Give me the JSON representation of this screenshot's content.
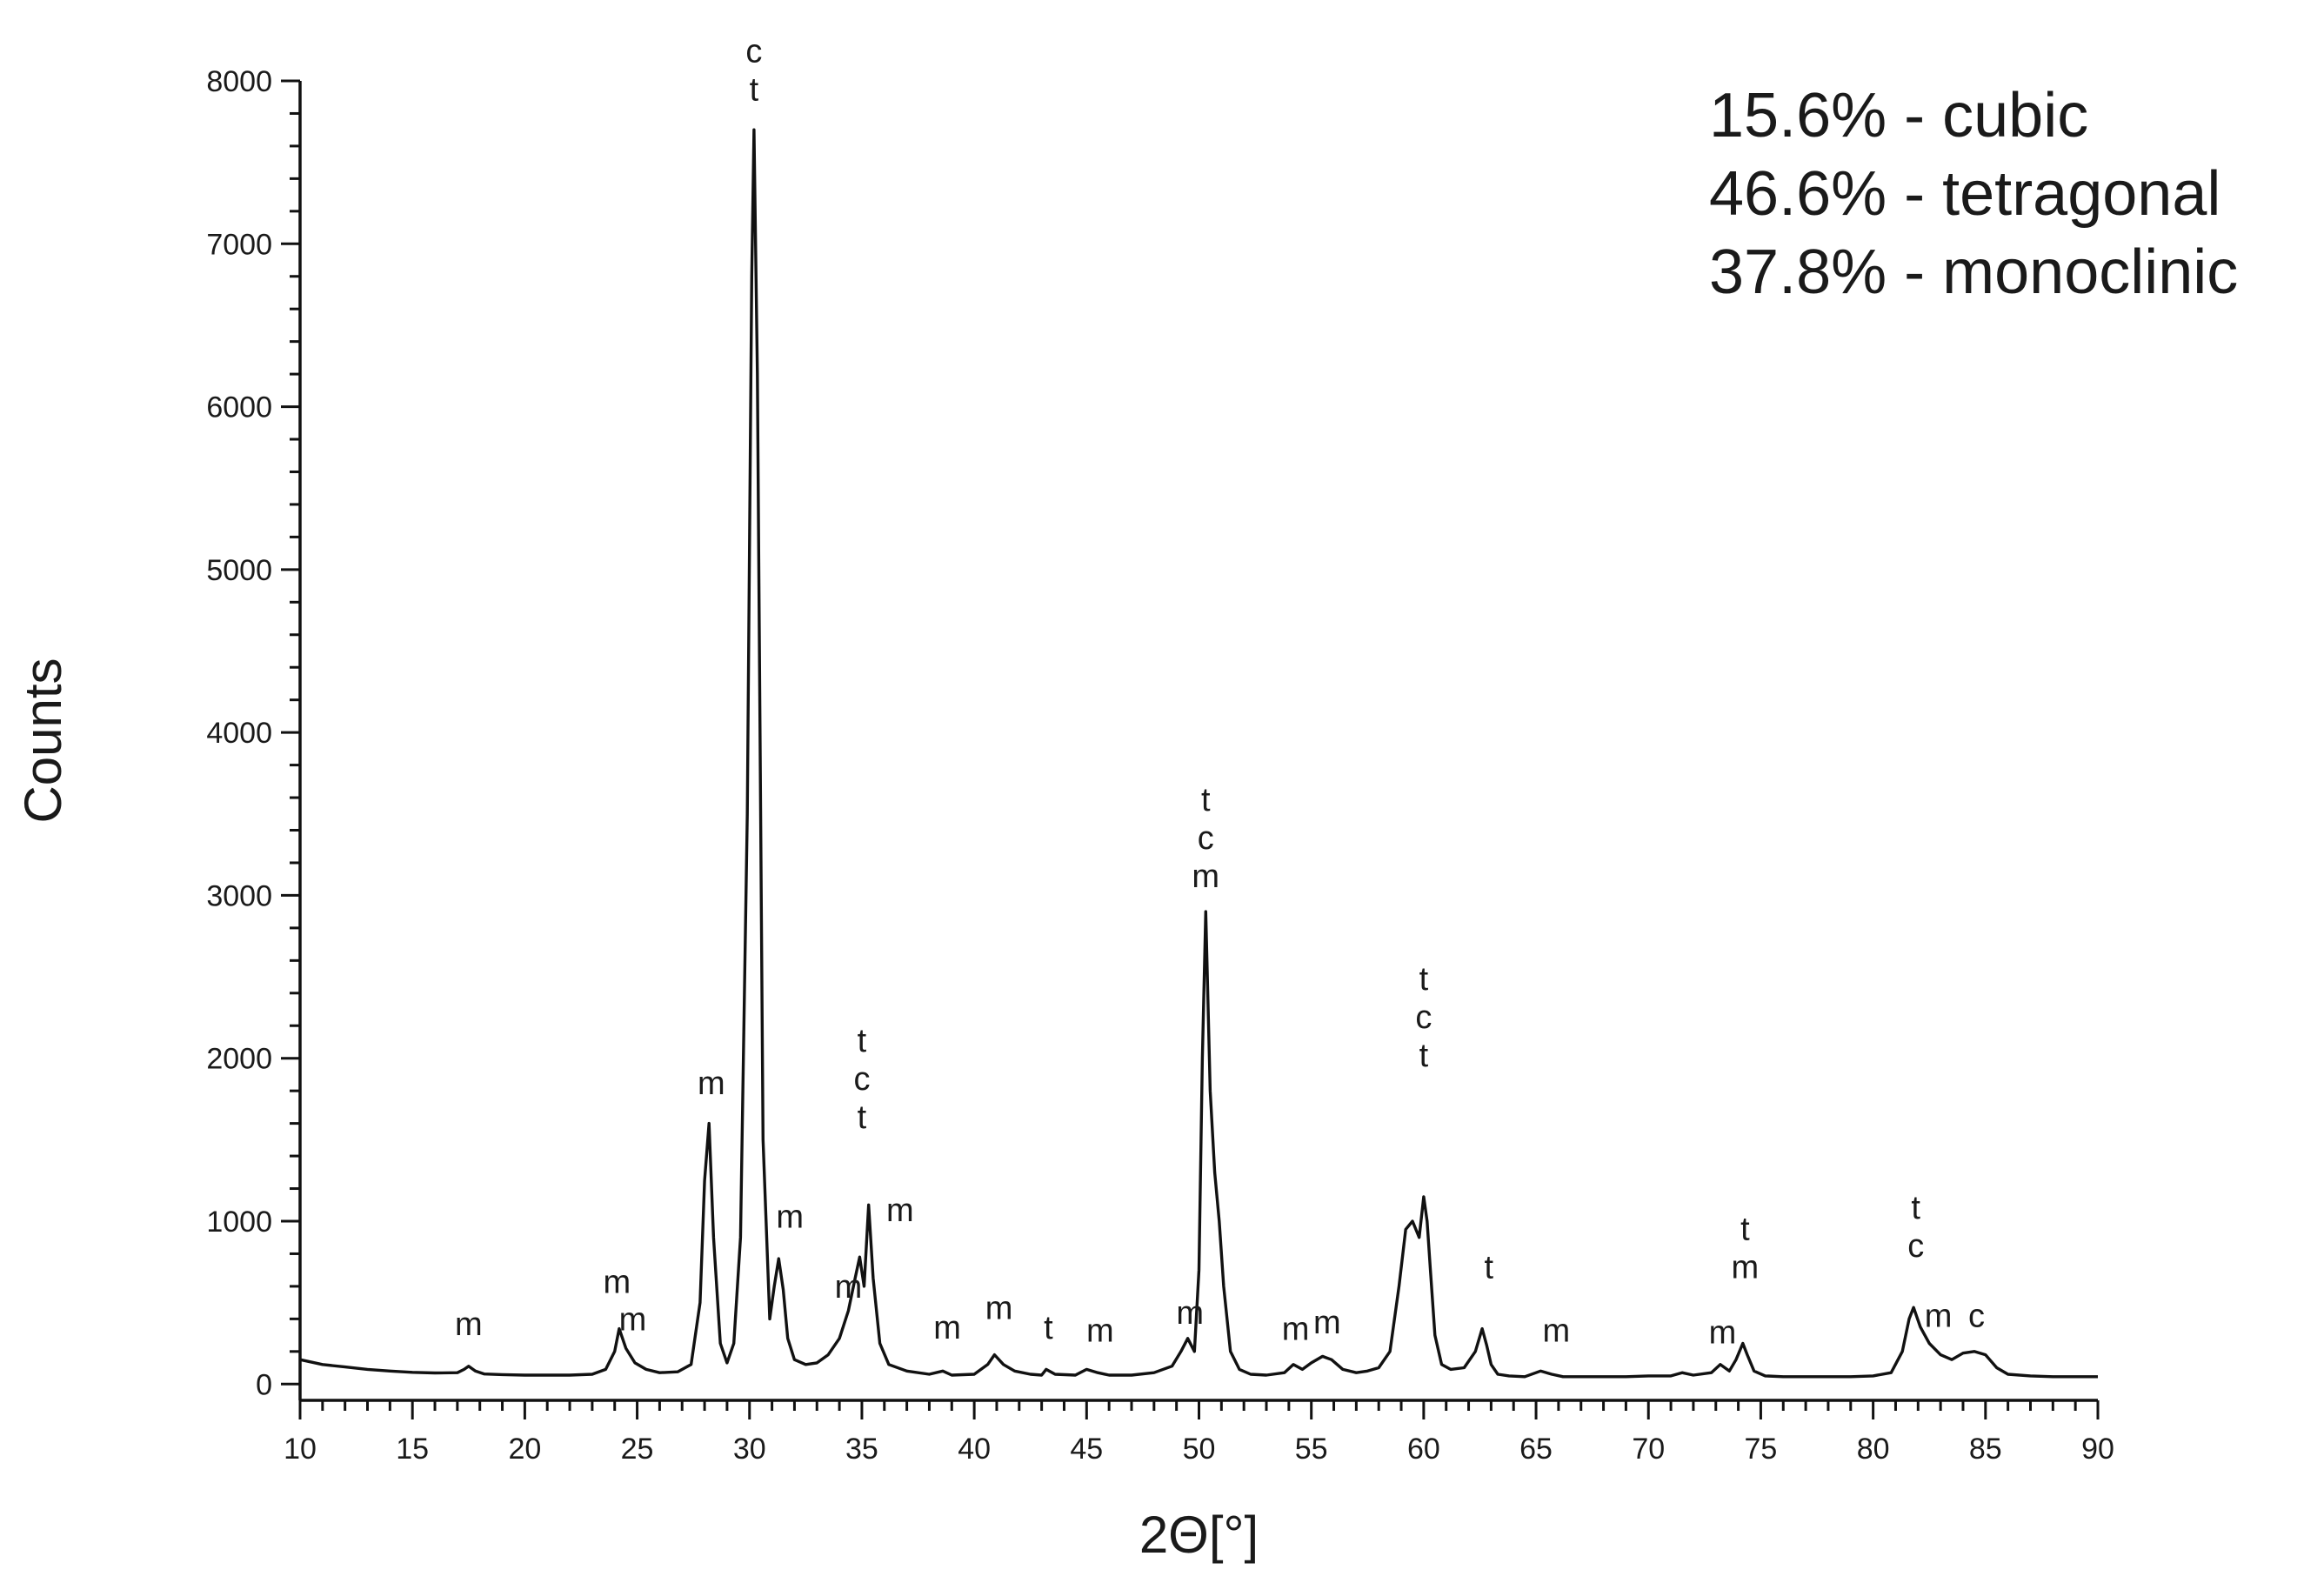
{
  "chart_data": {
    "type": "line",
    "title": "",
    "xlabel": "2Θ[°]",
    "ylabel": "Counts",
    "xlim": [
      10,
      90
    ],
    "ylim": [
      -100,
      8000
    ],
    "x_ticks": [
      10,
      15,
      20,
      25,
      30,
      35,
      40,
      45,
      50,
      55,
      60,
      65,
      70,
      75,
      80,
      85,
      90
    ],
    "y_ticks": [
      0,
      1000,
      2000,
      3000,
      4000,
      5000,
      6000,
      7000,
      8000
    ],
    "x_minor_step": 1,
    "y_minor_step": 200,
    "grid": false,
    "line_color": "#111111",
    "series": [
      {
        "x": [
          10,
          11,
          12,
          13,
          14,
          15,
          16,
          17,
          17.3,
          17.5,
          17.8,
          18.2,
          19,
          20,
          21,
          22,
          23,
          23.6,
          24.0,
          24.2,
          24.5,
          24.9,
          25.4,
          26.0,
          26.8,
          27.4,
          27.8,
          28.0,
          28.2,
          28.4,
          28.7,
          29.0,
          29.3,
          29.6,
          29.9,
          30.1,
          30.2,
          30.35,
          30.6,
          30.9,
          31.1,
          31.3,
          31.5,
          31.7,
          32.0,
          32.5,
          33.0,
          33.5,
          34.0,
          34.4,
          34.7,
          34.9,
          35.1,
          35.3,
          35.5,
          35.8,
          36.2,
          37.0,
          38.0,
          38.6,
          39.0,
          40.0,
          40.6,
          40.9,
          41.3,
          41.8,
          42.5,
          43.0,
          43.2,
          43.6,
          44.5,
          45.0,
          45.5,
          46.0,
          47.0,
          48.0,
          48.8,
          49.2,
          49.5,
          49.8,
          50.0,
          50.15,
          50.3,
          50.5,
          50.7,
          50.9,
          51.1,
          51.4,
          51.8,
          52.3,
          53.0,
          53.8,
          54.2,
          54.6,
          55.0,
          55.5,
          55.9,
          56.4,
          57.0,
          57.5,
          58.0,
          58.5,
          58.9,
          59.2,
          59.5,
          59.8,
          60.0,
          60.15,
          60.3,
          60.5,
          60.8,
          61.2,
          61.8,
          62.3,
          62.6,
          62.8,
          63.0,
          63.3,
          63.8,
          64.5,
          65.2,
          65.7,
          66.2,
          67.0,
          68.0,
          69.0,
          70.0,
          71.0,
          71.5,
          72.0,
          72.8,
          73.2,
          73.6,
          73.9,
          74.2,
          74.4,
          74.7,
          75.2,
          76.0,
          77.0,
          78.0,
          79.0,
          80.0,
          80.8,
          81.3,
          81.6,
          81.8,
          82.1,
          82.5,
          83.0,
          83.5,
          84.0,
          84.5,
          85.0,
          85.5,
          86.0,
          87.0,
          88.0,
          89.0,
          90.0
        ],
        "y": [
          150,
          120,
          105,
          90,
          80,
          72,
          68,
          70,
          90,
          110,
          80,
          62,
          58,
          55,
          55,
          55,
          60,
          90,
          200,
          340,
          220,
          130,
          90,
          70,
          75,
          120,
          500,
          1250,
          1600,
          900,
          250,
          130,
          250,
          900,
          3500,
          6800,
          7700,
          6200,
          1500,
          400,
          600,
          770,
          580,
          280,
          150,
          120,
          130,
          180,
          280,
          450,
          650,
          780,
          600,
          1100,
          650,
          250,
          120,
          80,
          60,
          80,
          55,
          60,
          120,
          180,
          120,
          80,
          60,
          55,
          90,
          60,
          55,
          90,
          70,
          55,
          55,
          70,
          110,
          200,
          280,
          200,
          700,
          2000,
          2900,
          1800,
          1300,
          1000,
          600,
          200,
          90,
          60,
          55,
          70,
          120,
          90,
          130,
          170,
          150,
          90,
          70,
          80,
          100,
          200,
          600,
          950,
          1000,
          900,
          1150,
          1000,
          700,
          300,
          120,
          90,
          100,
          200,
          340,
          240,
          120,
          60,
          50,
          45,
          80,
          60,
          45,
          45,
          45,
          45,
          50,
          50,
          70,
          55,
          70,
          120,
          80,
          150,
          250,
          180,
          80,
          50,
          45,
          45,
          45,
          45,
          50,
          70,
          200,
          400,
          470,
          350,
          250,
          180,
          150,
          190,
          200,
          180,
          100,
          60,
          50,
          45,
          45,
          45
        ]
      }
    ],
    "peak_labels": [
      {
        "x": 17.5,
        "y": 300,
        "lines": [
          "m"
        ]
      },
      {
        "x": 24.1,
        "y": 560,
        "lines": [
          "m"
        ]
      },
      {
        "x": 24.8,
        "y": 330,
        "lines": [
          "m"
        ]
      },
      {
        "x": 28.3,
        "y": 1780,
        "lines": [
          "m"
        ]
      },
      {
        "x": 30.2,
        "y": 7880,
        "lines": [
          "c",
          "t"
        ]
      },
      {
        "x": 31.8,
        "y": 960,
        "lines": [
          "m"
        ]
      },
      {
        "x": 34.4,
        "y": 530,
        "lines": [
          "m"
        ]
      },
      {
        "x": 35.0,
        "y": 1570,
        "lines": [
          "t",
          "c",
          "t"
        ]
      },
      {
        "x": 36.7,
        "y": 1000,
        "lines": [
          "m"
        ]
      },
      {
        "x": 38.8,
        "y": 280,
        "lines": [
          "m"
        ]
      },
      {
        "x": 41.1,
        "y": 400,
        "lines": [
          "m"
        ]
      },
      {
        "x": 43.3,
        "y": 280,
        "lines": [
          "t"
        ]
      },
      {
        "x": 45.6,
        "y": 260,
        "lines": [
          "m"
        ]
      },
      {
        "x": 49.6,
        "y": 370,
        "lines": [
          "m"
        ]
      },
      {
        "x": 50.3,
        "y": 3050,
        "lines": [
          "t",
          "c",
          "m"
        ]
      },
      {
        "x": 54.3,
        "y": 270,
        "lines": [
          "m"
        ]
      },
      {
        "x": 55.7,
        "y": 310,
        "lines": [
          "m"
        ]
      },
      {
        "x": 60.0,
        "y": 1950,
        "lines": [
          "t",
          "c",
          "t"
        ]
      },
      {
        "x": 62.9,
        "y": 650,
        "lines": [
          "t"
        ]
      },
      {
        "x": 65.9,
        "y": 260,
        "lines": [
          "m"
        ]
      },
      {
        "x": 73.3,
        "y": 250,
        "lines": [
          "m"
        ]
      },
      {
        "x": 74.3,
        "y": 650,
        "lines": [
          "t",
          "m"
        ]
      },
      {
        "x": 81.9,
        "y": 780,
        "lines": [
          "t",
          "c"
        ]
      },
      {
        "x": 82.9,
        "y": 350,
        "lines": [
          "m"
        ]
      },
      {
        "x": 84.6,
        "y": 350,
        "lines": [
          "c"
        ]
      }
    ],
    "legend_entries": [
      "15.6% - cubic",
      "46.6% - tetragonal",
      "37.8% - monoclinic"
    ],
    "legend_position": "top-right"
  }
}
